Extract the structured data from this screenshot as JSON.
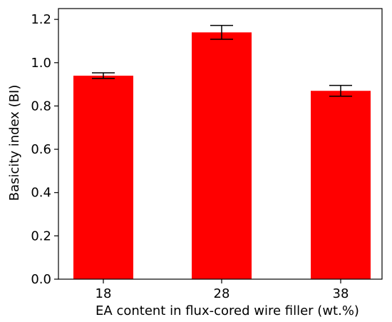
{
  "chart_data": {
    "type": "bar",
    "title": "",
    "xlabel": "EA content in flux-cored wire filler (wt.%)",
    "ylabel": "Basicity index (BI)",
    "categories": [
      "18",
      "28",
      "38"
    ],
    "values": [
      0.94,
      1.14,
      0.87
    ],
    "error": [
      0.013,
      0.032,
      0.025
    ],
    "ylim": [
      0,
      1.25
    ],
    "yticks": [
      "0.0",
      "0.2",
      "0.4",
      "0.6",
      "0.8",
      "1.0",
      "1.2"
    ],
    "grid": false,
    "legend": "none",
    "bar_color": "#ff0000",
    "error_color": "#000000"
  }
}
